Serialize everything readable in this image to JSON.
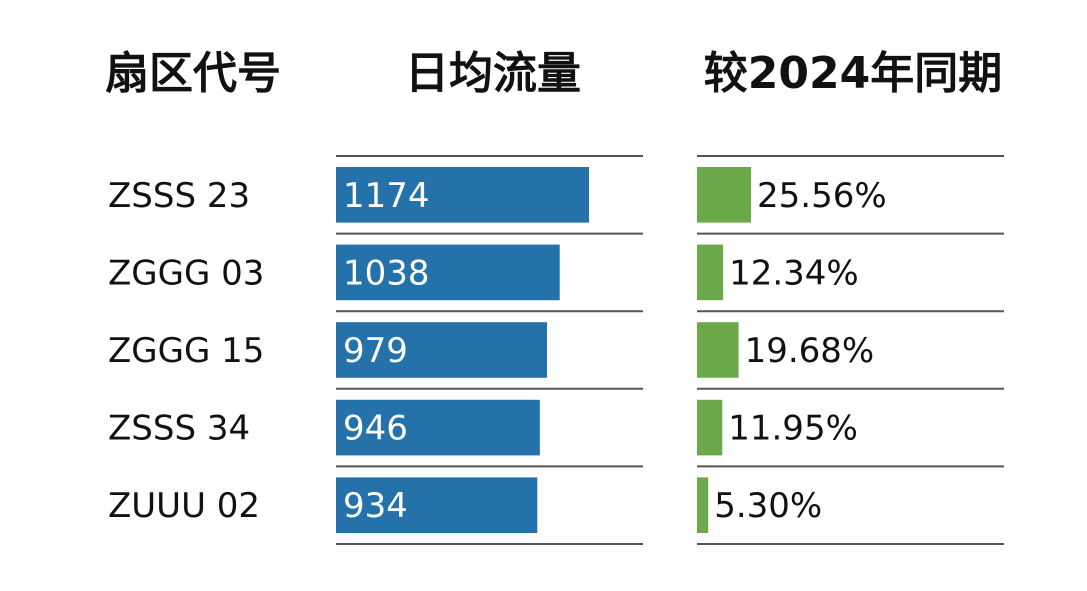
{
  "headers": {
    "sector": "扇区代号",
    "flow": "日均流量",
    "change": "较2024年同期"
  },
  "colors": {
    "flow_bar": "#2571aa",
    "change_bar": "#6ba84a",
    "rule": "#555555"
  },
  "chart_data": {
    "type": "bar",
    "categories": [
      "ZSSS 23",
      "ZGGG 03",
      "ZGGG 15",
      "ZSSS 34",
      "ZUUU 02"
    ],
    "series": [
      {
        "name": "日均流量",
        "values": [
          1174,
          1038,
          979,
          946,
          934
        ],
        "labels": [
          "1174",
          "1038",
          "979",
          "946",
          "934"
        ]
      },
      {
        "name": "较2024年同期",
        "values": [
          25.56,
          12.34,
          19.68,
          11.95,
          5.3
        ],
        "labels": [
          "25.56%",
          "12.34%",
          "19.68%",
          "11.95%",
          "5.30%"
        ]
      }
    ]
  }
}
